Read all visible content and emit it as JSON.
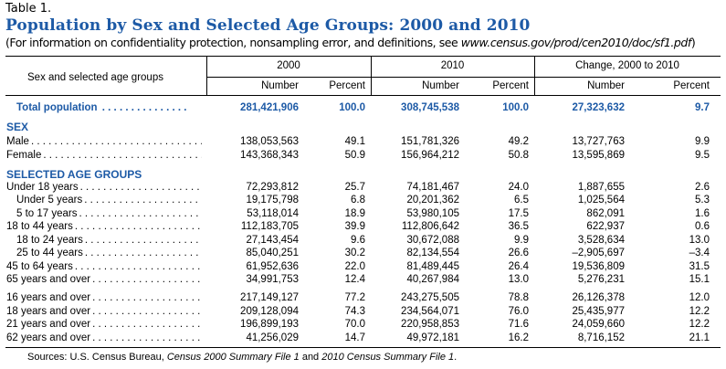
{
  "table_label": "Table 1.",
  "title": "Population by Sex and Selected Age Groups: 2000 and 2010",
  "subtitle_prefix": "(For information on confidentiality protection, nonsampling error, and definitions, see ",
  "subtitle_url": "www.census.gov/prod/cen2010/doc/sf1.pdf",
  "subtitle_suffix": ")",
  "headers": {
    "row_header": "Sex and selected age groups",
    "col_2000": "2000",
    "col_2010": "2010",
    "col_change": "Change, 2000 to 2010",
    "number": "Number",
    "percent": "Percent"
  },
  "total": {
    "label": "Total population",
    "n2000": "281,421,906",
    "p2000": "100.0",
    "n2010": "308,745,538",
    "p2010": "100.0",
    "nchg": "27,323,632",
    "pchg": "9.7"
  },
  "section_sex": "SEX",
  "sex_rows": [
    {
      "label": "Male",
      "n2000": "138,053,563",
      "p2000": "49.1",
      "n2010": "151,781,326",
      "p2010": "49.2",
      "nchg": "13,727,763",
      "pchg": "9.9"
    },
    {
      "label": "Female",
      "n2000": "143,368,343",
      "p2000": "50.9",
      "n2010": "156,964,212",
      "p2010": "50.8",
      "nchg": "13,595,869",
      "pchg": "9.5"
    }
  ],
  "section_age": "SELECTED AGE GROUPS",
  "age_rows": [
    {
      "label": "Under 18 years",
      "n2000": "72,293,812",
      "p2000": "25.7",
      "n2010": "74,181,467",
      "p2010": "24.0",
      "nchg": "1,887,655",
      "pchg": "2.6"
    },
    {
      "label": "Under 5 years",
      "n2000": "19,175,798",
      "p2000": "6.8",
      "n2010": "20,201,362",
      "p2010": "6.5",
      "nchg": "1,025,564",
      "pchg": "5.3"
    },
    {
      "label": "5 to 17 years",
      "n2000": "53,118,014",
      "p2000": "18.9",
      "n2010": "53,980,105",
      "p2010": "17.5",
      "nchg": "862,091",
      "pchg": "1.6"
    },
    {
      "label": "18 to 44 years",
      "n2000": "112,183,705",
      "p2000": "39.9",
      "n2010": "112,806,642",
      "p2010": "36.5",
      "nchg": "622,937",
      "pchg": "0.6"
    },
    {
      "label": "18 to 24 years",
      "n2000": "27,143,454",
      "p2000": "9.6",
      "n2010": "30,672,088",
      "p2010": "9.9",
      "nchg": "3,528,634",
      "pchg": "13.0"
    },
    {
      "label": "25 to 44 years",
      "n2000": "85,040,251",
      "p2000": "30.2",
      "n2010": "82,134,554",
      "p2010": "26.6",
      "nchg": "–2,905,697",
      "pchg": "–3.4"
    },
    {
      "label": "45 to 64 years",
      "n2000": "61,952,636",
      "p2000": "22.0",
      "n2010": "81,489,445",
      "p2010": "26.4",
      "nchg": "19,536,809",
      "pchg": "31.5"
    },
    {
      "label": "65 years and over",
      "n2000": "34,991,753",
      "p2000": "12.4",
      "n2010": "40,267,984",
      "p2010": "13.0",
      "nchg": "5,276,231",
      "pchg": "15.1"
    },
    {
      "label": "16 years and over",
      "n2000": "217,149,127",
      "p2000": "77.2",
      "n2010": "243,275,505",
      "p2010": "78.8",
      "nchg": "26,126,378",
      "pchg": "12.0"
    },
    {
      "label": "18 years and over",
      "n2000": "209,128,094",
      "p2000": "74.3",
      "n2010": "234,564,071",
      "p2010": "76.0",
      "nchg": "25,435,977",
      "pchg": "12.2"
    },
    {
      "label": "21 years and over",
      "n2000": "196,899,193",
      "p2000": "70.0",
      "n2010": "220,958,853",
      "p2010": "71.6",
      "nchg": "24,059,660",
      "pchg": "12.2"
    },
    {
      "label": "62 years and over",
      "n2000": "41,256,029",
      "p2000": "14.7",
      "n2010": "49,972,181",
      "p2010": "16.2",
      "nchg": "8,716,152",
      "pchg": "21.1"
    }
  ],
  "source_prefix": "Sources: U.S. Census Bureau, ",
  "source_italic_1": "Census 2000 Summary File 1",
  "source_mid": " and ",
  "source_italic_2": "2010 Census Summary File 1",
  "source_suffix": ".",
  "colors": {
    "accent": "#1d5aa6"
  }
}
